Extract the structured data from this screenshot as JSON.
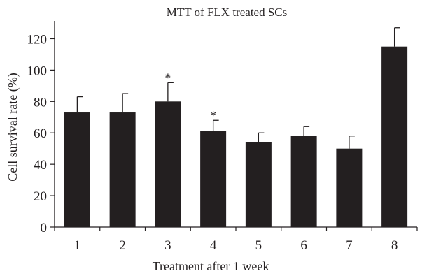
{
  "chart_data": {
    "type": "bar",
    "title": "MTT of FLX treated SCs",
    "xlabel": "Treatment after 1 week",
    "ylabel": "Cell survival rate (%)",
    "categories": [
      "1",
      "2",
      "3",
      "4",
      "5",
      "6",
      "7",
      "8"
    ],
    "values": [
      73,
      73,
      80,
      61,
      54,
      58,
      50,
      115
    ],
    "errors": [
      10,
      12,
      12,
      7,
      6,
      6,
      8,
      12
    ],
    "significance": [
      "",
      "",
      "*",
      "*",
      "",
      "",
      "",
      ""
    ],
    "ylim": [
      0,
      130
    ],
    "yticks": [
      0,
      20,
      40,
      60,
      80,
      100,
      120
    ],
    "grid": false,
    "legend": "none",
    "colors": {
      "bar": "#231f20",
      "axis": "#231f20",
      "background": "#ffffff"
    }
  }
}
